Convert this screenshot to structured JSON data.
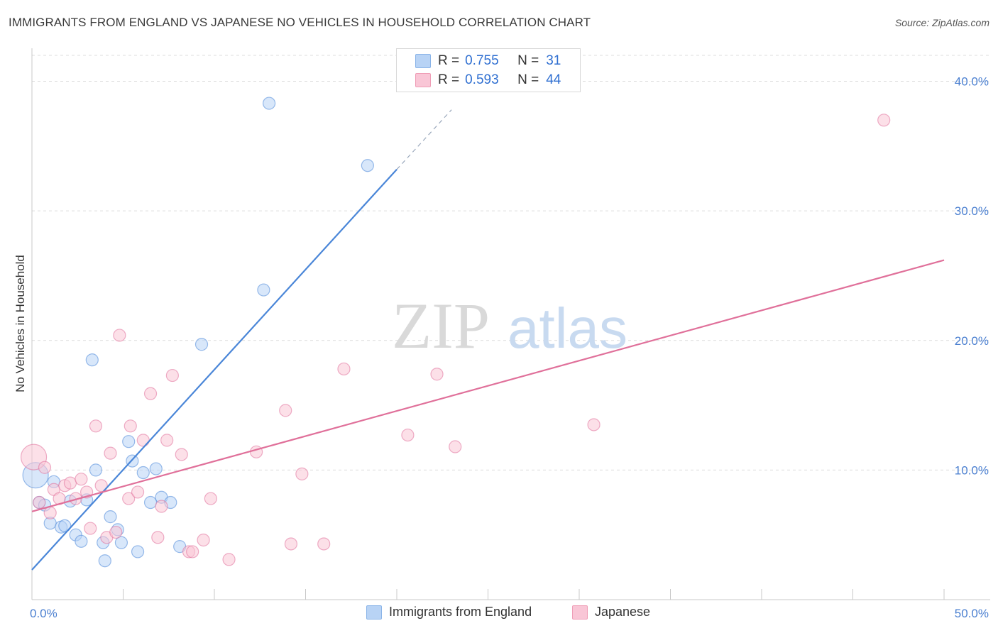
{
  "title": "IMMIGRANTS FROM ENGLAND VS JAPANESE NO VEHICLES IN HOUSEHOLD CORRELATION CHART",
  "source": "Source: ZipAtlas.com",
  "watermark": {
    "zip": "ZIP",
    "atlas": "atlas"
  },
  "legend": {
    "r_label": "R =",
    "n_label": "N =",
    "rows": [
      {
        "r": "0.755",
        "n": "31",
        "fill": "#b8d3f5",
        "stroke": "#8ab4e8"
      },
      {
        "r": "0.593",
        "n": "44",
        "fill": "#f9c6d6",
        "stroke": "#ef9db6"
      }
    ]
  },
  "chart_data": {
    "type": "scatter",
    "title": "IMMIGRANTS FROM ENGLAND VS JAPANESE NO VEHICLES IN HOUSEHOLD CORRELATION CHART",
    "xlabel": "",
    "ylabel": "No Vehicles in Household",
    "xlim": [
      0,
      50
    ],
    "ylim": [
      0,
      42
    ],
    "x_tick_labels": [
      "0.0%",
      "50.0%"
    ],
    "y_ticks": [
      10,
      20,
      30,
      40
    ],
    "y_tick_labels": [
      "10.0%",
      "20.0%",
      "30.0%",
      "40.0%"
    ],
    "grid": true,
    "series": [
      {
        "name": "Immigrants from England",
        "color": "#4a86d8",
        "fill": "#b8d3f5",
        "r": 0.755,
        "n": 31,
        "trend": {
          "x0": 0.0,
          "y0": 2.3,
          "x1": 20.0,
          "y1": 33.2,
          "dash_to_x": 23.0,
          "dash_to_y": 37.8
        },
        "points": [
          {
            "x": 0.2,
            "y": 9.6,
            "big": true
          },
          {
            "x": 0.4,
            "y": 7.5
          },
          {
            "x": 0.7,
            "y": 7.3
          },
          {
            "x": 1.0,
            "y": 5.9
          },
          {
            "x": 1.2,
            "y": 9.1
          },
          {
            "x": 1.6,
            "y": 5.6
          },
          {
            "x": 1.8,
            "y": 5.7
          },
          {
            "x": 2.1,
            "y": 7.6
          },
          {
            "x": 2.4,
            "y": 5.0
          },
          {
            "x": 2.7,
            "y": 4.5
          },
          {
            "x": 3.0,
            "y": 7.7
          },
          {
            "x": 3.3,
            "y": 18.5
          },
          {
            "x": 3.5,
            "y": 10.0
          },
          {
            "x": 3.9,
            "y": 4.4
          },
          {
            "x": 4.0,
            "y": 3.0
          },
          {
            "x": 4.3,
            "y": 6.4
          },
          {
            "x": 4.7,
            "y": 5.4
          },
          {
            "x": 4.9,
            "y": 4.4
          },
          {
            "x": 5.3,
            "y": 12.2
          },
          {
            "x": 5.5,
            "y": 10.7
          },
          {
            "x": 5.8,
            "y": 3.7
          },
          {
            "x": 6.1,
            "y": 9.8
          },
          {
            "x": 6.5,
            "y": 7.5
          },
          {
            "x": 6.8,
            "y": 10.1
          },
          {
            "x": 7.1,
            "y": 7.9
          },
          {
            "x": 7.6,
            "y": 7.5
          },
          {
            "x": 8.1,
            "y": 4.1
          },
          {
            "x": 9.3,
            "y": 19.7
          },
          {
            "x": 12.7,
            "y": 23.9
          },
          {
            "x": 13.0,
            "y": 38.3
          },
          {
            "x": 18.4,
            "y": 33.5
          }
        ]
      },
      {
        "name": "Japanese",
        "color": "#e0709a",
        "fill": "#f9c6d6",
        "r": 0.593,
        "n": 44,
        "trend": {
          "x0": 0.0,
          "y0": 6.8,
          "x1": 50.0,
          "y1": 26.2
        },
        "points": [
          {
            "x": 0.1,
            "y": 11.0,
            "big": true
          },
          {
            "x": 0.4,
            "y": 7.5
          },
          {
            "x": 0.7,
            "y": 10.2
          },
          {
            "x": 1.0,
            "y": 6.7
          },
          {
            "x": 1.2,
            "y": 8.5
          },
          {
            "x": 1.5,
            "y": 7.8
          },
          {
            "x": 1.8,
            "y": 8.8
          },
          {
            "x": 2.1,
            "y": 9.0
          },
          {
            "x": 2.4,
            "y": 7.8
          },
          {
            "x": 2.7,
            "y": 9.3
          },
          {
            "x": 3.0,
            "y": 8.3
          },
          {
            "x": 3.2,
            "y": 5.5
          },
          {
            "x": 3.5,
            "y": 13.4
          },
          {
            "x": 3.8,
            "y": 8.8
          },
          {
            "x": 4.1,
            "y": 4.8
          },
          {
            "x": 4.3,
            "y": 11.3
          },
          {
            "x": 4.6,
            "y": 5.2
          },
          {
            "x": 4.8,
            "y": 20.4
          },
          {
            "x": 5.3,
            "y": 7.8
          },
          {
            "x": 5.4,
            "y": 13.4
          },
          {
            "x": 5.8,
            "y": 8.3
          },
          {
            "x": 6.1,
            "y": 12.3
          },
          {
            "x": 6.5,
            "y": 15.9
          },
          {
            "x": 6.9,
            "y": 4.8
          },
          {
            "x": 7.1,
            "y": 7.2
          },
          {
            "x": 7.4,
            "y": 12.3
          },
          {
            "x": 7.7,
            "y": 17.3
          },
          {
            "x": 8.2,
            "y": 11.2
          },
          {
            "x": 8.6,
            "y": 3.7
          },
          {
            "x": 8.8,
            "y": 3.7
          },
          {
            "x": 9.4,
            "y": 4.6
          },
          {
            "x": 9.8,
            "y": 7.8
          },
          {
            "x": 10.8,
            "y": 3.1
          },
          {
            "x": 12.3,
            "y": 11.4
          },
          {
            "x": 13.9,
            "y": 14.6
          },
          {
            "x": 14.2,
            "y": 4.3
          },
          {
            "x": 14.8,
            "y": 9.7
          },
          {
            "x": 16.0,
            "y": 4.3
          },
          {
            "x": 17.1,
            "y": 17.8
          },
          {
            "x": 20.6,
            "y": 12.7
          },
          {
            "x": 22.2,
            "y": 17.4
          },
          {
            "x": 23.2,
            "y": 11.8
          },
          {
            "x": 30.8,
            "y": 13.5
          },
          {
            "x": 46.7,
            "y": 37.0
          }
        ]
      }
    ]
  }
}
